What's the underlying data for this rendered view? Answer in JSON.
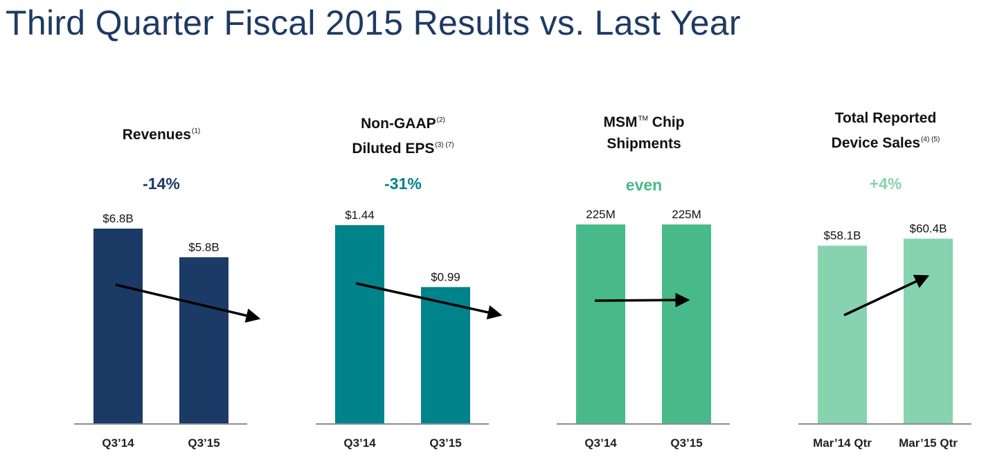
{
  "title": "Third Quarter Fiscal 2015 Results vs. Last Year",
  "colors": {
    "title": "#1e3a63",
    "revenues": "#1b3a66",
    "eps": "#00838b",
    "msm": "#48ba8a",
    "device": "#87d3b0",
    "arrow": "#000000",
    "baseline": "#8c8c8c"
  },
  "panels": [
    {
      "title_lines": [
        {
          "text": "Revenues",
          "sup": "(1)"
        }
      ],
      "change": "-14%"
    },
    {
      "title_lines": [
        {
          "text": "Non-GAAP",
          "sup": "(2)"
        },
        {
          "text": "Diluted EPS",
          "sup": "(3) (7)"
        }
      ],
      "change": "-31%"
    },
    {
      "title_lines": [
        {
          "text": "MSM",
          "sup": "TM",
          "after": " Chip"
        },
        {
          "text": "Shipments",
          "sup": ""
        }
      ],
      "change": "even"
    },
    {
      "title_lines": [
        {
          "text": "Total Reported",
          "sup": ""
        },
        {
          "text": "Device Sales",
          "sup": "(4) (5)"
        }
      ],
      "change": "+4%"
    }
  ],
  "chart_data": [
    {
      "type": "bar",
      "categories": [
        "Q3’14",
        "Q3’15"
      ],
      "values": [
        6.8,
        5.8
      ],
      "value_labels": [
        "$6.8B",
        "$5.8B"
      ],
      "trend": "down",
      "ylim": [
        0,
        6.8
      ]
    },
    {
      "type": "bar",
      "categories": [
        "Q3’14",
        "Q3’15"
      ],
      "values": [
        1.44,
        0.99
      ],
      "value_labels": [
        "$1.44",
        "$0.99"
      ],
      "trend": "down",
      "ylim": [
        0,
        1.44
      ]
    },
    {
      "type": "bar",
      "categories": [
        "Q3’14",
        "Q3’15"
      ],
      "values": [
        225,
        225
      ],
      "value_labels": [
        "225M",
        "225M"
      ],
      "trend": "flat",
      "ylim": [
        0,
        225
      ]
    },
    {
      "type": "bar",
      "categories": [
        "Mar’14 Qtr",
        "Mar’15 Qtr"
      ],
      "values": [
        58.1,
        60.4
      ],
      "value_labels": [
        "$58.1B",
        "$60.4B"
      ],
      "trend": "up",
      "ylim": [
        0,
        62.1
      ]
    }
  ]
}
